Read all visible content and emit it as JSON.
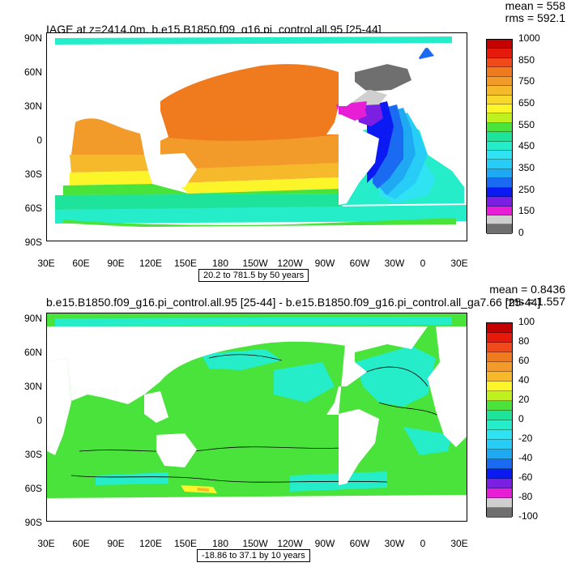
{
  "top": {
    "title": "IAGE at z=2414.0m, b.e15.B1850.f09_g16.pi_control.all.95 [25-44]",
    "mean_text": "mean = 558",
    "rms_text": "rms = 592.1",
    "range_text": "20.2 to 781.5 by 50 years",
    "colorbar_labels": [
      "1000",
      "850",
      "750",
      "650",
      "550",
      "450",
      "350",
      "250",
      "150",
      "0"
    ],
    "colorbar_colors": [
      "#c40000",
      "#e61a0a",
      "#f04a1a",
      "#f07b1f",
      "#f39b2a",
      "#f5b92b",
      "#f8d82a",
      "#fcf52a",
      "#bff11e",
      "#49e33b",
      "#1ee39b",
      "#25ecc9",
      "#30e3f2",
      "#27ccf7",
      "#1fa9f3",
      "#1b6bf2",
      "#0b1af3",
      "#7b1fe3",
      "#e81ed7",
      "#cfcfcf",
      "#6f6f6f"
    ]
  },
  "bottom": {
    "title": "b.e15.B1850.f09_g16.pi_control.all.95 [25-44] - b.e15.B1850.f09_g16.pi_control.all_ga7.66 [25-44]",
    "mean_text": "mean = 0.8436",
    "rms_text": "rms = 1.557",
    "range_text": "-18.86 to 37.1 by 10 years",
    "colorbar_labels": [
      "100",
      "80",
      "60",
      "40",
      "20",
      "0",
      "-20",
      "-40",
      "-60",
      "-80",
      "-100"
    ],
    "colorbar_colors": [
      "#c40000",
      "#e61a0a",
      "#f04a1a",
      "#f07b1f",
      "#f39b2a",
      "#f5b92b",
      "#fcf52a",
      "#bff11e",
      "#49e33b",
      "#1ee39b",
      "#25ecc9",
      "#30e3f2",
      "#27ccf7",
      "#1fa9f3",
      "#1b6bf2",
      "#0b1af3",
      "#7b1fe3",
      "#e81ed7",
      "#cfcfcf",
      "#6f6f6f"
    ]
  },
  "axes": {
    "x_ticks": [
      "30E",
      "60E",
      "90E",
      "120E",
      "150E",
      "180",
      "150W",
      "120W",
      "90W",
      "60W",
      "30W",
      "0",
      "30E"
    ],
    "y_ticks": [
      "90N",
      "60N",
      "30N",
      "0",
      "30S",
      "60S",
      "90S"
    ]
  },
  "chart_data": [
    {
      "type": "heatmap",
      "title": "IAGE at z=2414.0m, b.e15.B1850.f09_g16.pi_control.all.95 [25-44]",
      "x_range": [
        "30E",
        "30E (390)"
      ],
      "y_range": [
        "90S",
        "90N"
      ],
      "units": "years",
      "contour_min": 20.2,
      "contour_max": 781.5,
      "contour_interval": 50,
      "mean": 558,
      "rms": 592.1,
      "colorbar_ticks": [
        1000,
        850,
        750,
        650,
        550,
        450,
        350,
        250,
        150,
        0
      ],
      "regions": [
        {
          "region": "North Pacific",
          "approx_value": 750
        },
        {
          "region": "Equatorial Pacific / Indian",
          "approx_value": 650
        },
        {
          "region": "Southern Ocean",
          "approx_value": 500
        },
        {
          "region": "North Atlantic",
          "approx_value": 200
        },
        {
          "region": "Arctic",
          "approx_value": 50
        }
      ]
    },
    {
      "type": "heatmap",
      "title": "b.e15.B1850.f09_g16.pi_control.all.95 [25-44] - b.e15.B1850.f09_g16.pi_control.all_ga7.66 [25-44]",
      "x_range": [
        "30E",
        "30E (390)"
      ],
      "y_range": [
        "90S",
        "90N"
      ],
      "units": "years",
      "contour_min": -18.86,
      "contour_max": 37.1,
      "contour_interval": 10,
      "mean": 0.8436,
      "rms": 1.557,
      "colorbar_ticks": [
        100,
        80,
        60,
        40,
        20,
        0,
        -20,
        -40,
        -60,
        -80,
        -100
      ],
      "regions": [
        {
          "region": "Global ocean (most)",
          "approx_value": 0
        },
        {
          "region": "North Atlantic / Arctic",
          "approx_value": -10
        },
        {
          "region": "Southern Ocean south of Australia",
          "approx_value": 30
        }
      ]
    }
  ]
}
